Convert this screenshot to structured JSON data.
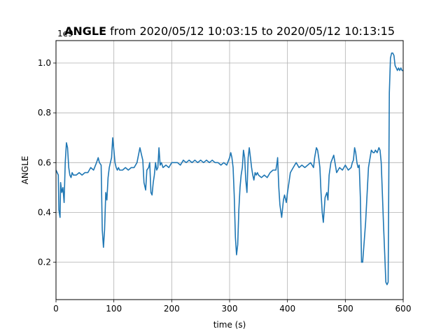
{
  "chart_data": {
    "type": "line",
    "title_bold": "ANGLE",
    "title_rest": " from 2020/05/12 10:03:15 to 2020/05/12 10:13:15",
    "xlabel": "time (s)",
    "ylabel": "ANGLE",
    "offset_label": "1e9",
    "xlim": [
      0,
      600
    ],
    "ylim": [
      0.05,
      1.09
    ],
    "xticks": [
      0,
      100,
      200,
      300,
      400,
      500,
      600
    ],
    "yticks": [
      0.2,
      0.4,
      0.6,
      0.8,
      1.0
    ],
    "ytick_labels": [
      "0.2",
      "0.4",
      "0.6",
      "0.8",
      "1.0"
    ],
    "grid": true,
    "line_color": "#1f77b4",
    "series": [
      {
        "x": [
          0,
          2,
          4,
          5,
          7,
          8,
          10,
          12,
          14,
          16,
          18,
          20,
          22,
          24,
          26,
          28,
          30,
          35,
          40,
          45,
          50,
          55,
          60,
          65,
          70,
          73,
          75,
          78,
          80,
          82,
          84,
          86,
          88,
          90,
          92,
          94,
          96,
          98,
          100,
          102,
          104,
          106,
          108,
          110,
          115,
          120,
          125,
          130,
          135,
          140,
          145,
          148,
          150,
          152,
          155,
          157,
          160,
          162,
          164,
          166,
          168,
          170,
          172,
          174,
          176,
          178,
          180,
          182,
          185,
          190,
          195,
          200,
          205,
          210,
          215,
          220,
          225,
          230,
          235,
          240,
          245,
          250,
          255,
          260,
          265,
          270,
          275,
          280,
          285,
          290,
          295,
          300,
          302,
          304,
          306,
          308,
          310,
          312,
          314,
          316,
          318,
          320,
          322,
          324,
          326,
          328,
          330,
          332,
          334,
          336,
          338,
          340,
          342,
          344,
          346,
          348,
          350,
          355,
          360,
          365,
          370,
          375,
          380,
          382,
          383,
          385,
          387,
          390,
          393,
          395,
          398,
          400,
          402,
          405,
          410,
          415,
          420,
          425,
          430,
          435,
          440,
          445,
          447,
          450,
          452,
          454,
          456,
          458,
          460,
          462,
          465,
          468,
          470,
          472,
          475,
          480,
          485,
          490,
          495,
          500,
          505,
          510,
          512,
          514,
          516,
          518,
          520,
          522,
          524,
          526,
          528,
          530,
          535,
          540,
          545,
          548,
          550,
          552,
          555,
          558,
          560,
          562,
          564,
          566,
          568,
          570,
          572,
          574,
          576,
          578,
          580,
          582,
          584,
          586,
          588,
          590,
          592,
          594,
          596,
          598,
          600
        ],
        "y": [
          0.57,
          0.56,
          0.55,
          0.41,
          0.38,
          0.52,
          0.48,
          0.5,
          0.44,
          0.6,
          0.68,
          0.66,
          0.58,
          0.55,
          0.54,
          0.56,
          0.55,
          0.55,
          0.56,
          0.55,
          0.56,
          0.56,
          0.58,
          0.57,
          0.6,
          0.62,
          0.6,
          0.59,
          0.33,
          0.26,
          0.33,
          0.48,
          0.45,
          0.54,
          0.58,
          0.6,
          0.62,
          0.7,
          0.65,
          0.6,
          0.58,
          0.57,
          0.58,
          0.57,
          0.57,
          0.58,
          0.57,
          0.58,
          0.58,
          0.6,
          0.66,
          0.63,
          0.61,
          0.52,
          0.49,
          0.57,
          0.58,
          0.6,
          0.48,
          0.47,
          0.52,
          0.55,
          0.6,
          0.57,
          0.58,
          0.66,
          0.59,
          0.6,
          0.58,
          0.59,
          0.58,
          0.6,
          0.6,
          0.6,
          0.59,
          0.61,
          0.6,
          0.61,
          0.6,
          0.61,
          0.6,
          0.61,
          0.6,
          0.61,
          0.6,
          0.61,
          0.6,
          0.6,
          0.59,
          0.6,
          0.59,
          0.62,
          0.64,
          0.62,
          0.58,
          0.47,
          0.3,
          0.23,
          0.27,
          0.41,
          0.5,
          0.55,
          0.58,
          0.65,
          0.62,
          0.53,
          0.48,
          0.62,
          0.66,
          0.62,
          0.58,
          0.55,
          0.53,
          0.56,
          0.55,
          0.56,
          0.55,
          0.54,
          0.55,
          0.54,
          0.56,
          0.57,
          0.57,
          0.6,
          0.62,
          0.5,
          0.43,
          0.38,
          0.45,
          0.47,
          0.44,
          0.48,
          0.51,
          0.56,
          0.58,
          0.6,
          0.58,
          0.59,
          0.58,
          0.59,
          0.6,
          0.58,
          0.62,
          0.66,
          0.65,
          0.62,
          0.58,
          0.48,
          0.4,
          0.36,
          0.46,
          0.48,
          0.45,
          0.55,
          0.6,
          0.63,
          0.56,
          0.58,
          0.57,
          0.59,
          0.57,
          0.58,
          0.6,
          0.61,
          0.66,
          0.64,
          0.6,
          0.58,
          0.59,
          0.46,
          0.2,
          0.2,
          0.36,
          0.58,
          0.65,
          0.64,
          0.64,
          0.65,
          0.64,
          0.66,
          0.65,
          0.6,
          0.48,
          0.35,
          0.24,
          0.12,
          0.11,
          0.12,
          0.88,
          1.02,
          1.04,
          1.04,
          1.03,
          0.99,
          0.98,
          0.97,
          0.98,
          0.97,
          0.98,
          0.97,
          0.97
        ]
      }
    ]
  }
}
